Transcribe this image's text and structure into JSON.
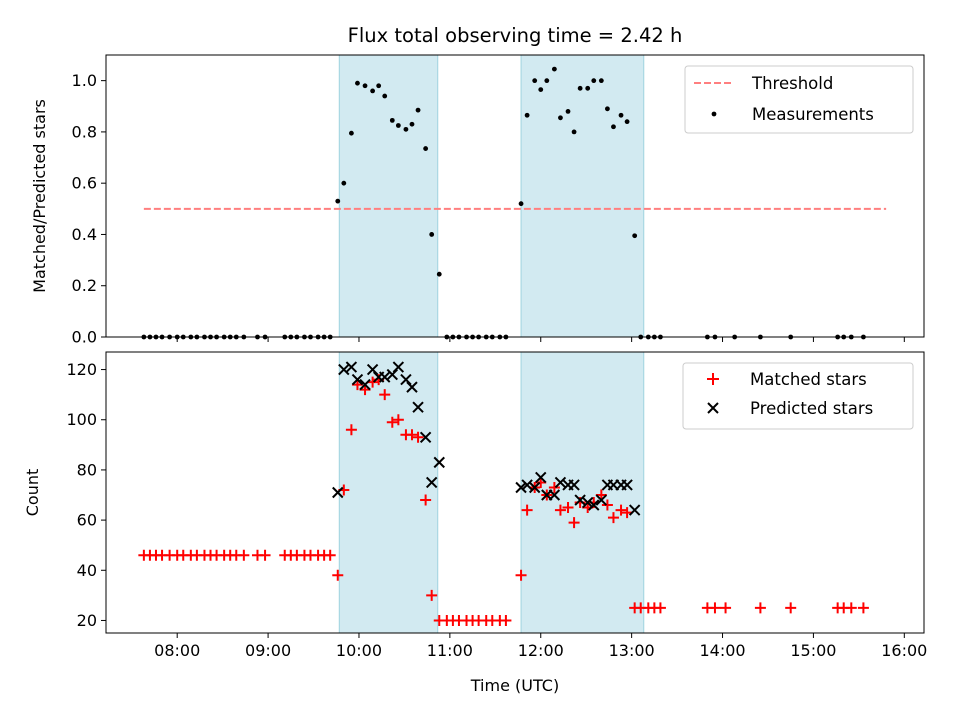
{
  "chart_data": [
    {
      "type": "scatter",
      "panel": "top",
      "title": "Flux total observing time = 2.42 h",
      "xlabel": "",
      "ylabel": "Matched/Predicted stars",
      "xlim": [
        "07:13",
        "16:13"
      ],
      "ylim": [
        0,
        1.1
      ],
      "yticks": [
        0.0,
        0.2,
        0.4,
        0.6,
        0.8,
        1.0
      ],
      "ytick_labels": [
        "0.0",
        "0.2",
        "0.4",
        "0.6",
        "0.8",
        "1.0"
      ],
      "xticks": [
        "08:00",
        "09:00",
        "10:00",
        "11:00",
        "12:00",
        "13:00",
        "14:00",
        "15:00",
        "16:00"
      ],
      "grid": false,
      "legend_position": "top-right",
      "shaded_intervals": [
        [
          "09:47",
          "10:52"
        ],
        [
          "11:47",
          "13:08"
        ]
      ],
      "series": [
        {
          "name": "Threshold",
          "kind": "dashed-line",
          "color": "#ff7f7f",
          "x": [
            "07:38",
            "15:48"
          ],
          "y": [
            0.5,
            0.5
          ]
        },
        {
          "name": "Measurements",
          "kind": "dots",
          "color": "#000000",
          "points": [
            [
              "07:38",
              0
            ],
            [
              "07:42",
              0
            ],
            [
              "07:46",
              0
            ],
            [
              "07:50",
              0
            ],
            [
              "07:55",
              0
            ],
            [
              "08:00",
              0
            ],
            [
              "08:04",
              0
            ],
            [
              "08:09",
              0
            ],
            [
              "08:13",
              0
            ],
            [
              "08:18",
              0
            ],
            [
              "08:22",
              0
            ],
            [
              "08:26",
              0
            ],
            [
              "08:31",
              0
            ],
            [
              "08:35",
              0
            ],
            [
              "08:39",
              0
            ],
            [
              "08:44",
              0
            ],
            [
              "08:53",
              0
            ],
            [
              "08:58",
              0
            ],
            [
              "09:11",
              0
            ],
            [
              "09:15",
              0
            ],
            [
              "09:19",
              0
            ],
            [
              "09:24",
              0
            ],
            [
              "09:28",
              0
            ],
            [
              "09:33",
              0
            ],
            [
              "09:37",
              0
            ],
            [
              "09:41",
              0
            ],
            [
              "09:46",
              0.53
            ],
            [
              "09:50",
              0.6
            ],
            [
              "09:55",
              0.795
            ],
            [
              "09:59",
              0.99
            ],
            [
              "10:04",
              0.98
            ],
            [
              "10:09",
              0.96
            ],
            [
              "10:13",
              0.98
            ],
            [
              "10:17",
              0.94
            ],
            [
              "10:22",
              0.845
            ],
            [
              "10:26",
              0.825
            ],
            [
              "10:31",
              0.81
            ],
            [
              "10:35",
              0.83
            ],
            [
              "10:39",
              0.885
            ],
            [
              "10:44",
              0.735
            ],
            [
              "10:48",
              0.4
            ],
            [
              "10:53",
              0.245
            ],
            [
              "10:58",
              0
            ],
            [
              "11:02",
              0
            ],
            [
              "11:06",
              0
            ],
            [
              "11:11",
              0
            ],
            [
              "11:15",
              0
            ],
            [
              "11:19",
              0
            ],
            [
              "11:24",
              0
            ],
            [
              "11:28",
              0
            ],
            [
              "11:33",
              0
            ],
            [
              "11:37",
              0
            ],
            [
              "11:47",
              0.52
            ],
            [
              "11:51",
              0.865
            ],
            [
              "11:56",
              1.0
            ],
            [
              "12:00",
              0.965
            ],
            [
              "12:04",
              1.0
            ],
            [
              "12:09",
              1.045
            ],
            [
              "12:13",
              0.855
            ],
            [
              "12:18",
              0.88
            ],
            [
              "12:22",
              0.8
            ],
            [
              "12:26",
              0.97
            ],
            [
              "12:31",
              0.97
            ],
            [
              "12:35",
              1.0
            ],
            [
              "12:40",
              1.0
            ],
            [
              "12:44",
              0.89
            ],
            [
              "12:48",
              0.82
            ],
            [
              "12:53",
              0.865
            ],
            [
              "12:57",
              0.84
            ],
            [
              "13:02",
              0.395
            ],
            [
              "13:06",
              0
            ],
            [
              "13:11",
              0
            ],
            [
              "13:15",
              0
            ],
            [
              "13:19",
              0
            ],
            [
              "13:50",
              0
            ],
            [
              "13:55",
              0
            ],
            [
              "14:08",
              0
            ],
            [
              "14:25",
              0
            ],
            [
              "14:45",
              0
            ],
            [
              "15:16",
              0
            ],
            [
              "15:20",
              0
            ],
            [
              "15:25",
              0
            ],
            [
              "15:33",
              0
            ]
          ]
        }
      ]
    },
    {
      "type": "scatter",
      "panel": "bottom",
      "title": "",
      "xlabel": "Time (UTC)",
      "ylabel": "Count",
      "xlim": [
        "07:13",
        "16:13"
      ],
      "ylim": [
        15,
        127
      ],
      "yticks": [
        20,
        40,
        60,
        80,
        100,
        120
      ],
      "ytick_labels": [
        "20",
        "40",
        "60",
        "80",
        "100",
        "120"
      ],
      "xticks": [
        "08:00",
        "09:00",
        "10:00",
        "11:00",
        "12:00",
        "13:00",
        "14:00",
        "15:00",
        "16:00"
      ],
      "xtick_labels": [
        "08:00",
        "09:00",
        "10:00",
        "11:00",
        "12:00",
        "13:00",
        "14:00",
        "15:00",
        "16:00"
      ],
      "grid": false,
      "legend_position": "top-right",
      "shaded_intervals": [
        [
          "09:47",
          "10:52"
        ],
        [
          "11:47",
          "13:08"
        ]
      ],
      "series": [
        {
          "name": "Matched stars",
          "kind": "plus",
          "color": "#ff0000",
          "points": [
            [
              "07:38",
              46
            ],
            [
              "07:42",
              46
            ],
            [
              "07:46",
              46
            ],
            [
              "07:50",
              46
            ],
            [
              "07:55",
              46
            ],
            [
              "08:00",
              46
            ],
            [
              "08:04",
              46
            ],
            [
              "08:09",
              46
            ],
            [
              "08:13",
              46
            ],
            [
              "08:18",
              46
            ],
            [
              "08:22",
              46
            ],
            [
              "08:26",
              46
            ],
            [
              "08:31",
              46
            ],
            [
              "08:35",
              46
            ],
            [
              "08:39",
              46
            ],
            [
              "08:44",
              46
            ],
            [
              "08:53",
              46
            ],
            [
              "08:58",
              46
            ],
            [
              "09:11",
              46
            ],
            [
              "09:15",
              46
            ],
            [
              "09:19",
              46
            ],
            [
              "09:24",
              46
            ],
            [
              "09:28",
              46
            ],
            [
              "09:33",
              46
            ],
            [
              "09:37",
              46
            ],
            [
              "09:41",
              46
            ],
            [
              "09:46",
              38
            ],
            [
              "09:50",
              72
            ],
            [
              "09:55",
              96
            ],
            [
              "09:59",
              114
            ],
            [
              "10:04",
              112
            ],
            [
              "10:09",
              115
            ],
            [
              "10:13",
              116
            ],
            [
              "10:17",
              110
            ],
            [
              "10:22",
              99
            ],
            [
              "10:26",
              100
            ],
            [
              "10:31",
              94
            ],
            [
              "10:35",
              94
            ],
            [
              "10:39",
              93
            ],
            [
              "10:44",
              68
            ],
            [
              "10:48",
              30
            ],
            [
              "10:53",
              20
            ],
            [
              "10:58",
              20
            ],
            [
              "11:02",
              20
            ],
            [
              "11:06",
              20
            ],
            [
              "11:11",
              20
            ],
            [
              "11:15",
              20
            ],
            [
              "11:19",
              20
            ],
            [
              "11:24",
              20
            ],
            [
              "11:28",
              20
            ],
            [
              "11:33",
              20
            ],
            [
              "11:37",
              20
            ],
            [
              "11:47",
              38
            ],
            [
              "11:51",
              64
            ],
            [
              "11:56",
              73
            ],
            [
              "12:00",
              75
            ],
            [
              "12:04",
              70
            ],
            [
              "12:09",
              73
            ],
            [
              "12:13",
              64
            ],
            [
              "12:18",
              65
            ],
            [
              "12:22",
              59
            ],
            [
              "12:26",
              67
            ],
            [
              "12:31",
              65
            ],
            [
              "12:35",
              67
            ],
            [
              "12:40",
              70
            ],
            [
              "12:44",
              66
            ],
            [
              "12:48",
              61
            ],
            [
              "12:53",
              64
            ],
            [
              "12:57",
              63
            ],
            [
              "13:02",
              25
            ],
            [
              "13:06",
              25
            ],
            [
              "13:11",
              25
            ],
            [
              "13:15",
              25
            ],
            [
              "13:19",
              25
            ],
            [
              "13:50",
              25
            ],
            [
              "13:55",
              25
            ],
            [
              "14:02",
              25
            ],
            [
              "14:25",
              25
            ],
            [
              "14:45",
              25
            ],
            [
              "15:16",
              25
            ],
            [
              "15:20",
              25
            ],
            [
              "15:25",
              25
            ],
            [
              "15:33",
              25
            ]
          ]
        },
        {
          "name": "Predicted stars",
          "kind": "cross",
          "color": "#000000",
          "points": [
            [
              "09:46",
              71
            ],
            [
              "09:50",
              120
            ],
            [
              "09:55",
              121
            ],
            [
              "09:59",
              116
            ],
            [
              "10:04",
              114
            ],
            [
              "10:09",
              120
            ],
            [
              "10:13",
              117
            ],
            [
              "10:17",
              117
            ],
            [
              "10:22",
              118
            ],
            [
              "10:26",
              121
            ],
            [
              "10:31",
              116
            ],
            [
              "10:35",
              113
            ],
            [
              "10:39",
              105
            ],
            [
              "10:44",
              93
            ],
            [
              "10:48",
              75
            ],
            [
              "10:53",
              83
            ],
            [
              "11:47",
              73
            ],
            [
              "11:51",
              74
            ],
            [
              "11:56",
              73
            ],
            [
              "12:00",
              77
            ],
            [
              "12:04",
              70
            ],
            [
              "12:09",
              70
            ],
            [
              "12:13",
              75
            ],
            [
              "12:18",
              74
            ],
            [
              "12:22",
              74
            ],
            [
              "12:26",
              68
            ],
            [
              "12:31",
              67
            ],
            [
              "12:35",
              66
            ],
            [
              "12:40",
              68
            ],
            [
              "12:44",
              74
            ],
            [
              "12:48",
              74
            ],
            [
              "12:53",
              74
            ],
            [
              "12:57",
              74
            ],
            [
              "13:02",
              64
            ]
          ]
        }
      ]
    }
  ]
}
